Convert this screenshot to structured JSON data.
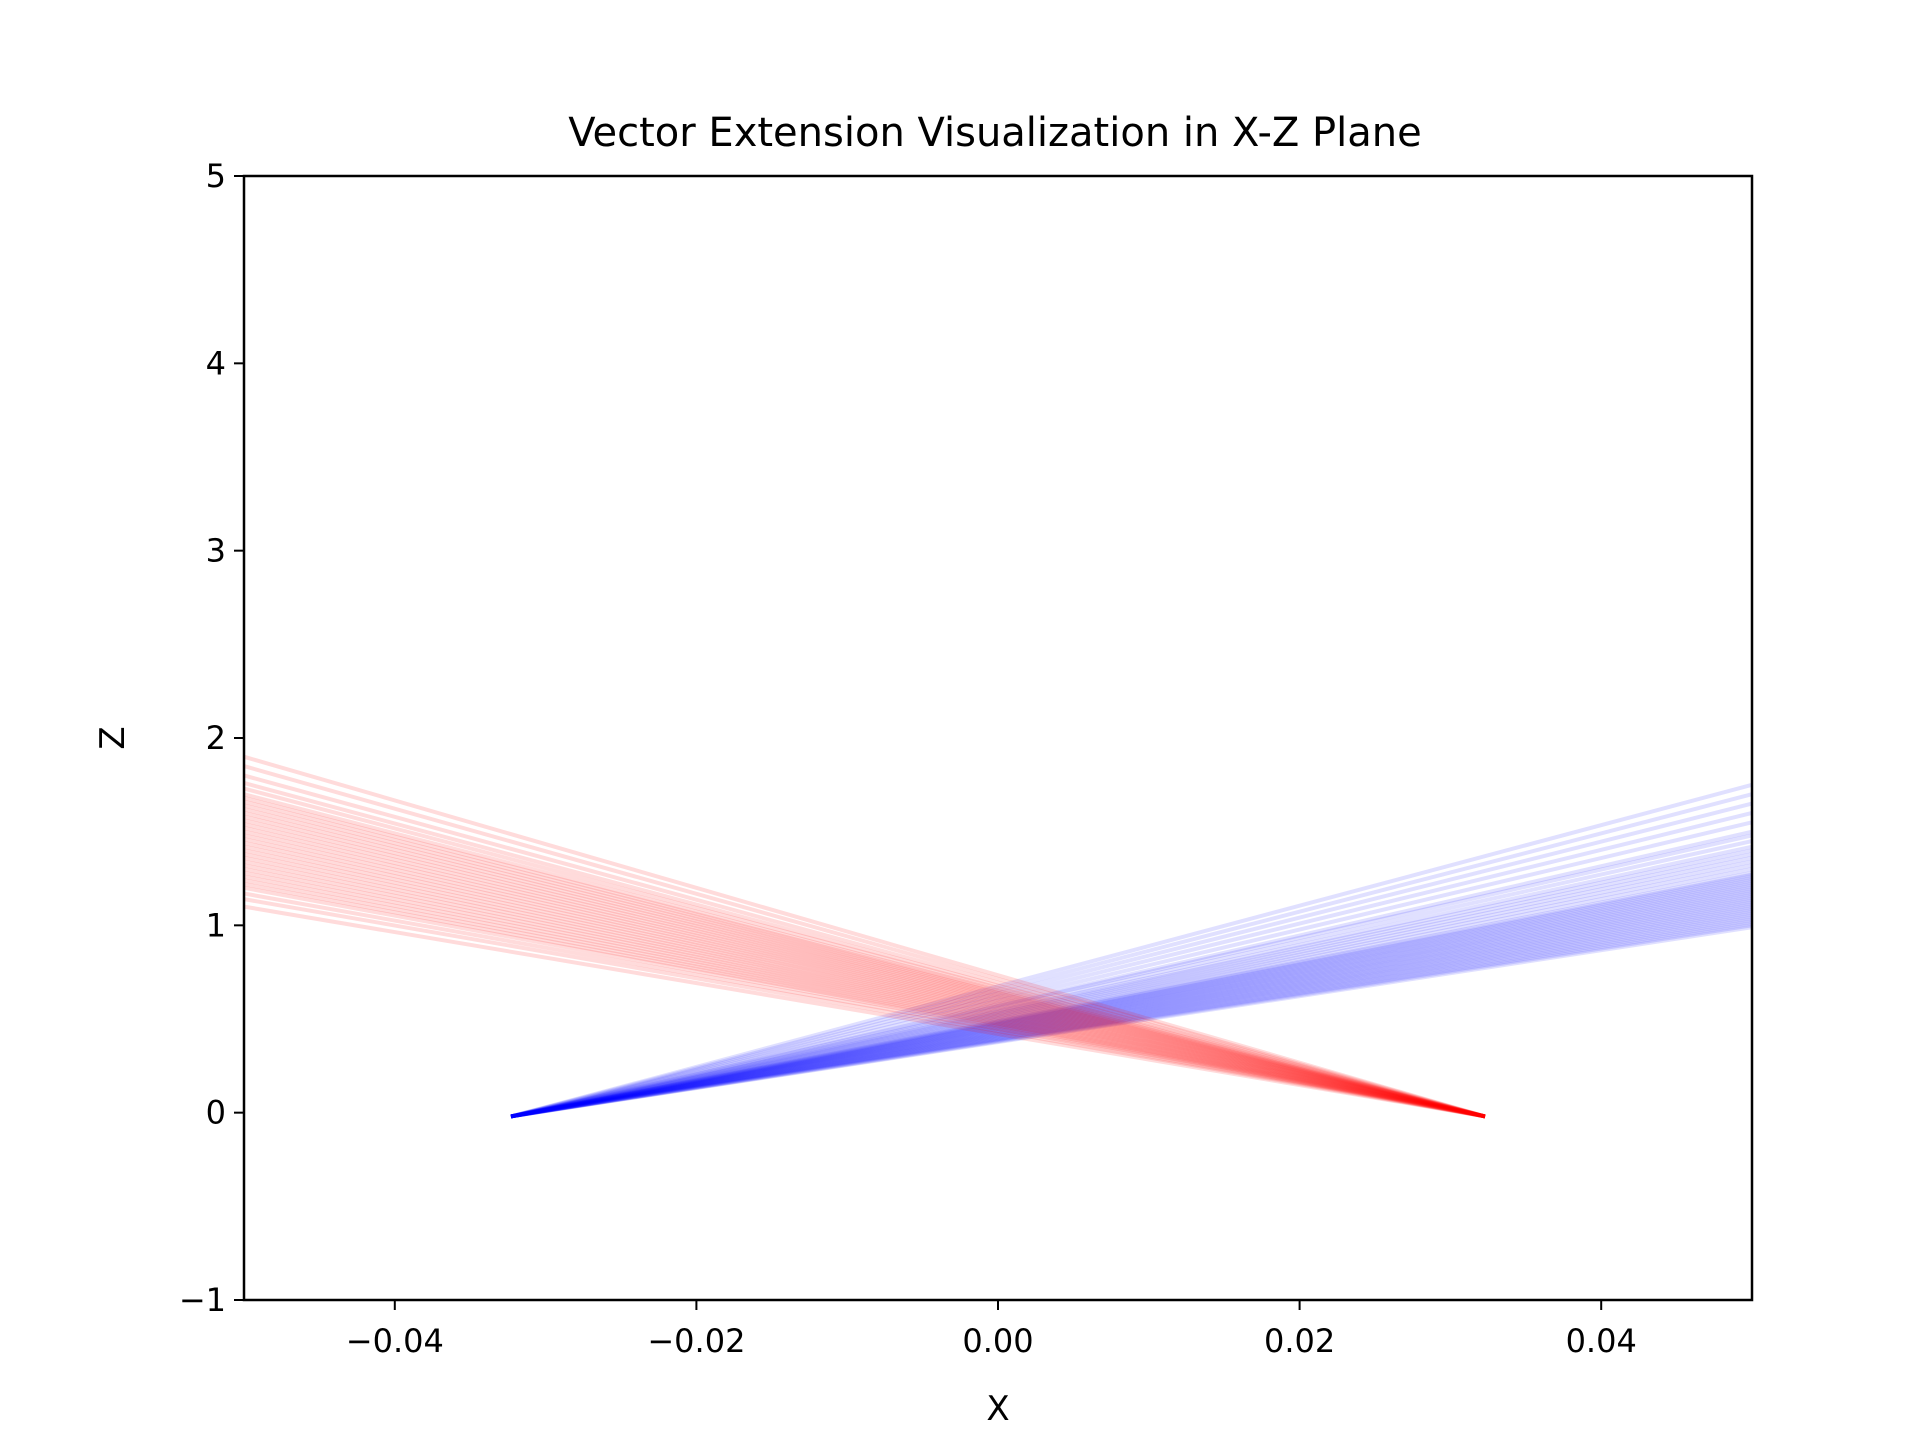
{
  "chart_data": {
    "type": "line",
    "title": "Vector Extension Visualization in X-Z Plane",
    "xlabel": "X",
    "ylabel": "Z",
    "xlim": [
      -0.05,
      0.05
    ],
    "ylim": [
      -1,
      5
    ],
    "x_ticks": [
      -0.04,
      -0.02,
      0.0,
      0.02,
      0.04
    ],
    "x_tick_labels": [
      "−0.04",
      "−0.02",
      "0.00",
      "0.02",
      "0.04"
    ],
    "y_ticks": [
      -1,
      0,
      1,
      2,
      3,
      4,
      5
    ],
    "y_tick_labels": [
      "−1",
      "0",
      "1",
      "2",
      "3",
      "4",
      "5"
    ],
    "grid": false,
    "legend": "none",
    "colors": {
      "blue_series": "#0000ff",
      "red_series": "#ff0000"
    },
    "series": [
      {
        "color": "blue_series",
        "origin": [
          -0.0323,
          -0.02
        ],
        "line_opacity": 0.12,
        "end_x": 0.05,
        "end_z_values": [
          1.75,
          1.7,
          1.65,
          1.6,
          1.55,
          1.5,
          1.48,
          1.45,
          1.42,
          1.4,
          1.38,
          1.36,
          1.34,
          1.32,
          1.3,
          1.28,
          1.27,
          1.26,
          1.25,
          1.24,
          1.23,
          1.22,
          1.21,
          1.2,
          1.19,
          1.18,
          1.17,
          1.16,
          1.15,
          1.14,
          1.13,
          1.12,
          1.11,
          1.1,
          1.09,
          1.08,
          1.07,
          1.06,
          1.05,
          1.04,
          1.03,
          1.02,
          1.01,
          1.0,
          0.99
        ]
      },
      {
        "color": "red_series",
        "origin": [
          0.0323,
          -0.02
        ],
        "line_opacity": 0.14,
        "end_x": -0.05,
        "end_z_values": [
          1.9,
          1.85,
          1.8,
          1.76,
          1.73,
          1.7,
          1.68,
          1.66,
          1.64,
          1.62,
          1.6,
          1.58,
          1.56,
          1.54,
          1.52,
          1.5,
          1.48,
          1.46,
          1.44,
          1.42,
          1.4,
          1.38,
          1.36,
          1.34,
          1.32,
          1.3,
          1.28,
          1.26,
          1.24,
          1.22,
          1.2,
          1.17,
          1.14,
          1.1
        ]
      }
    ]
  }
}
